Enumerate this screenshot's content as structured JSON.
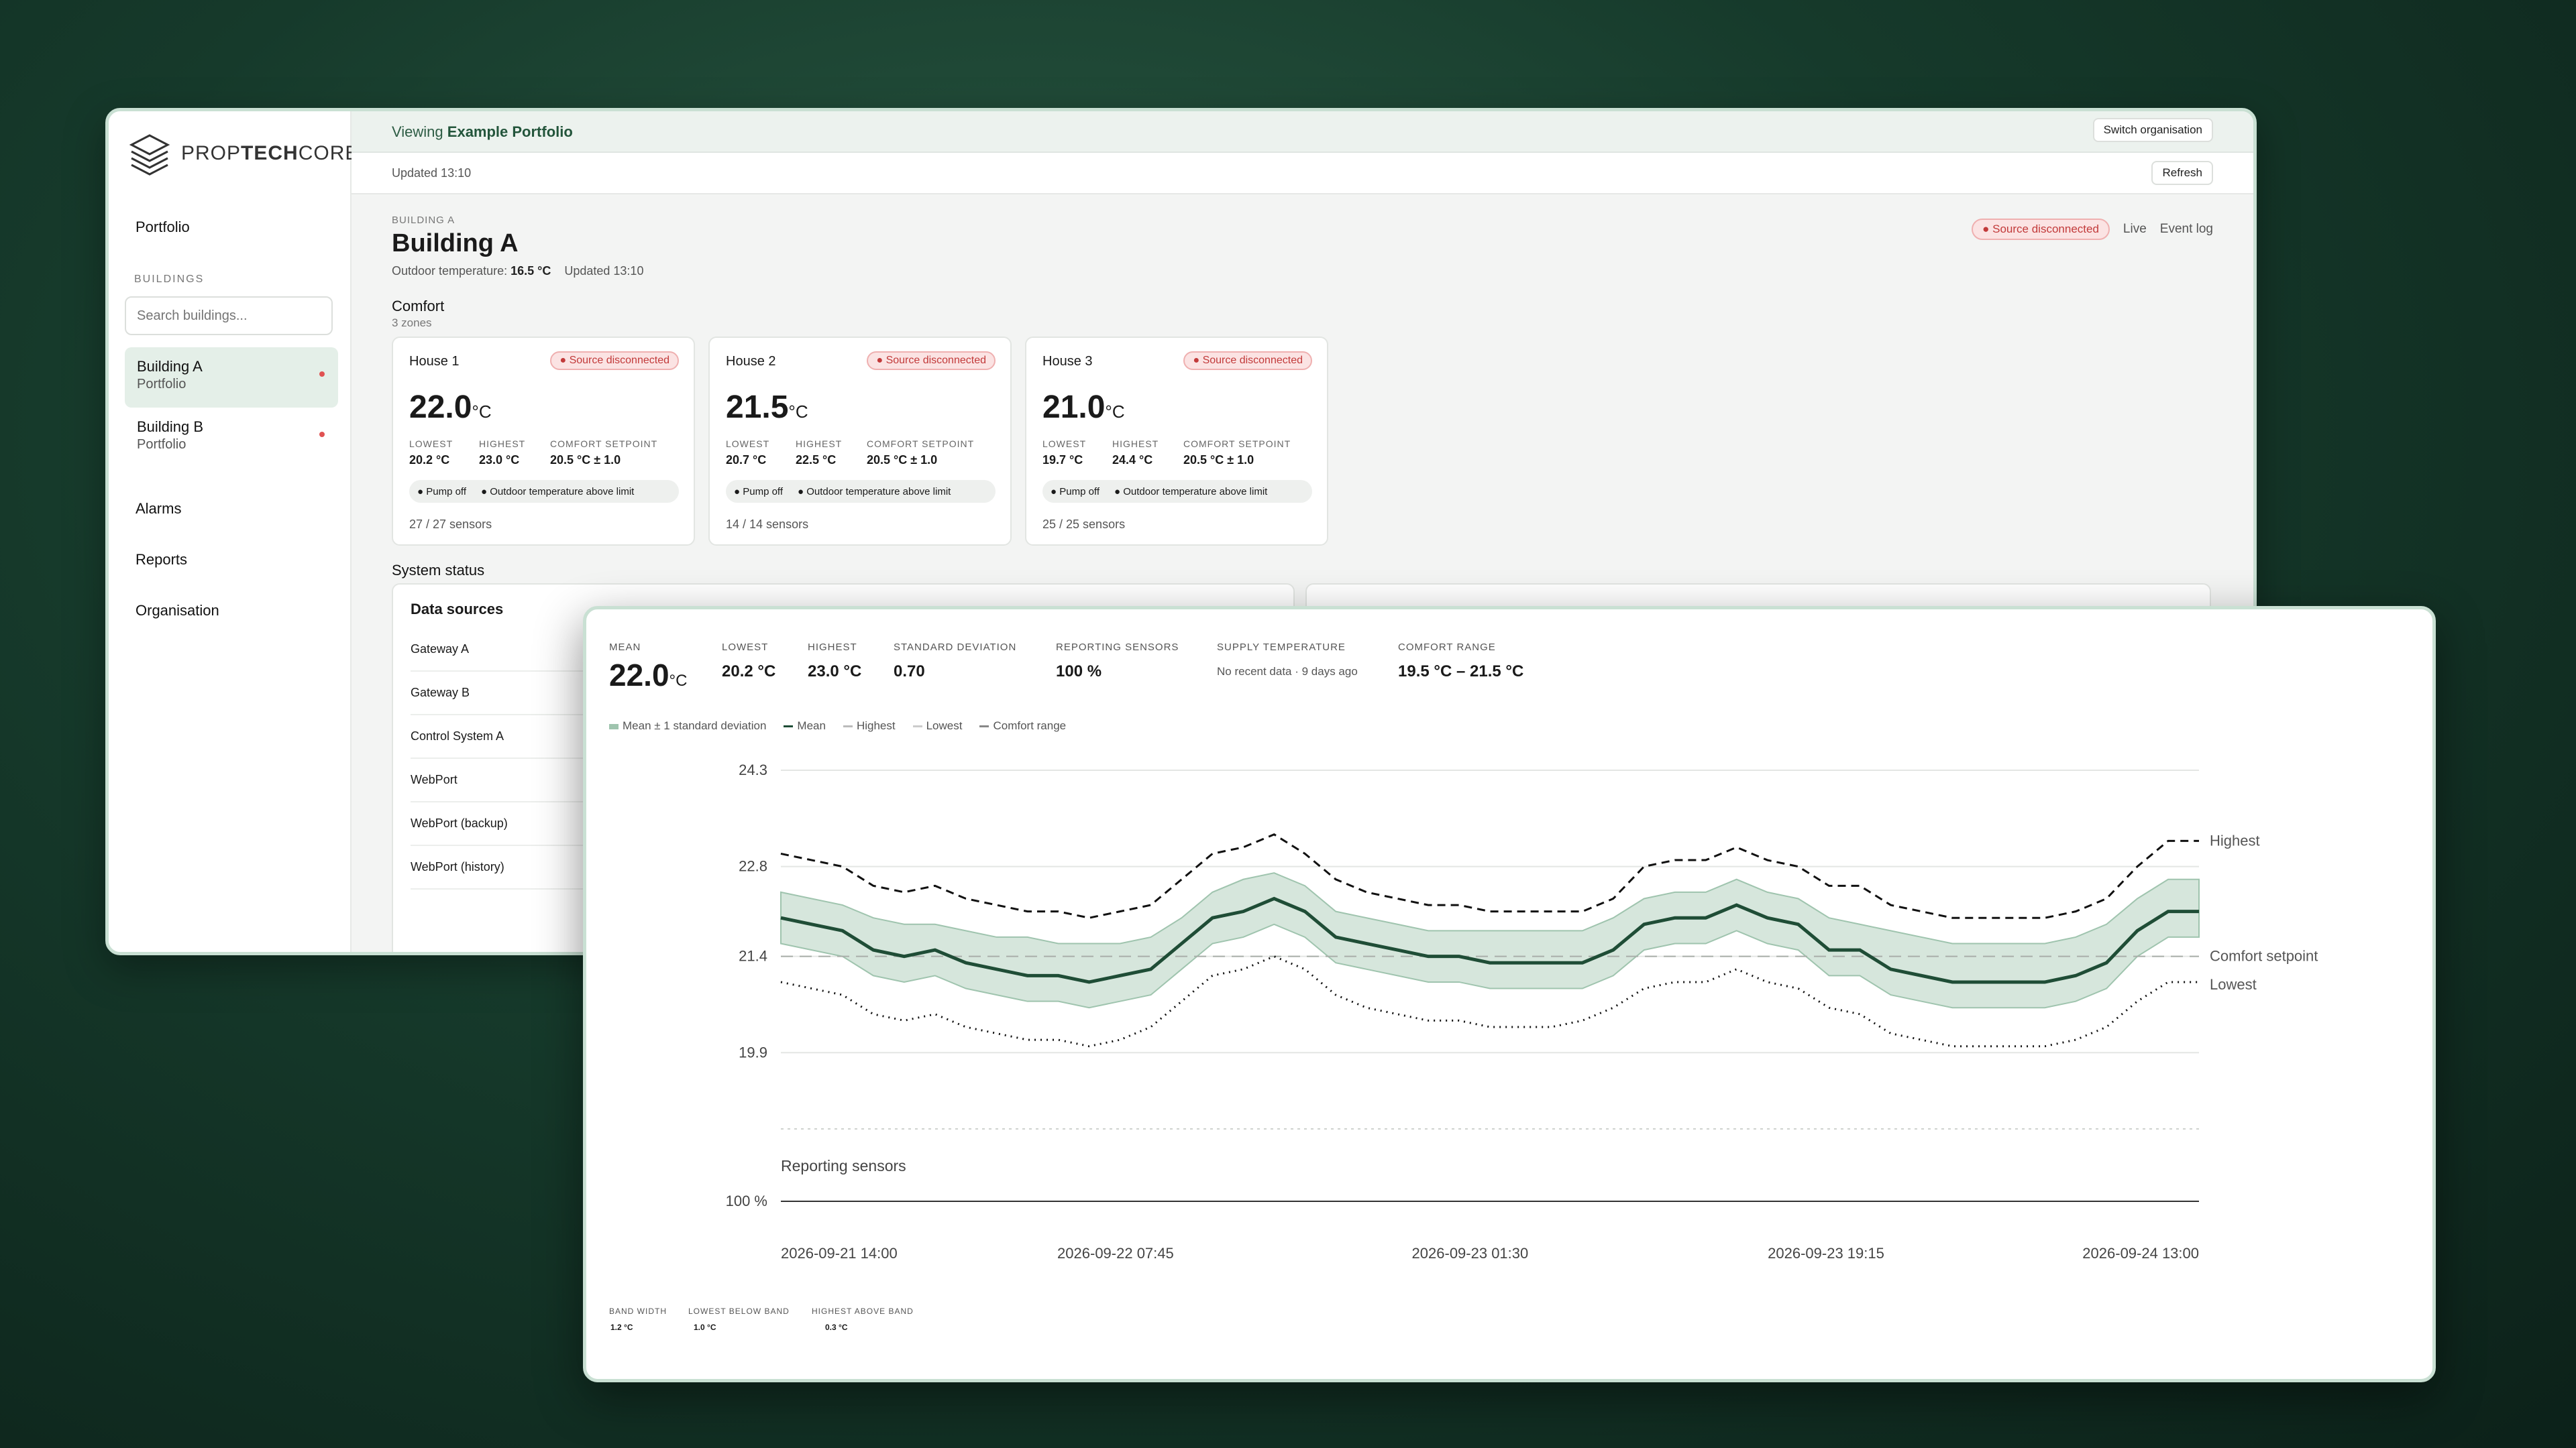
{
  "brand": {
    "name_light": "PROP",
    "name_bold": "TECH",
    "name_tail": "CORE"
  },
  "sidebar": {
    "portfolio": "Portfolio",
    "section": "BUILDINGS",
    "search_placeholder": "Search buildings...",
    "buildings": [
      {
        "name": "Building A",
        "sub": "Portfolio"
      },
      {
        "name": "Building B",
        "sub": "Portfolio"
      }
    ],
    "alarms": "Alarms",
    "reports": "Reports",
    "organisation": "Organisation"
  },
  "topbar": {
    "viewing": "Viewing",
    "org": "Example Portfolio",
    "switch": "Switch organisation"
  },
  "updbar": {
    "updated": "Updated 13:10",
    "refresh": "Refresh"
  },
  "building": {
    "crumb": "BUILDING A",
    "title": "Building A",
    "outdoor_label": "Outdoor temperature:",
    "outdoor_value": "16.5 °C",
    "updated": "Updated 13:10",
    "status": "● Source disconnected",
    "live": "Live",
    "event_log": "Event log"
  },
  "comfort": {
    "title": "Comfort",
    "zones": "3 zones",
    "lbl_lowest": "LOWEST",
    "lbl_highest": "HIGHEST",
    "lbl_setpoint": "COMFORT SETPOINT",
    "houses": [
      {
        "name": "House 1",
        "status": "● Source disconnected",
        "temp": "22.0",
        "unit": "°C",
        "lowest": "20.2 °C",
        "highest": "23.0 °C",
        "setpoint": "20.5 °C ± 1.0",
        "chip1": "● Pump off",
        "chip2": "● Outdoor temperature above limit",
        "sensors": "27 / 27 sensors"
      },
      {
        "name": "House 2",
        "status": "● Source disconnected",
        "temp": "21.5",
        "unit": "°C",
        "lowest": "20.7 °C",
        "highest": "22.5 °C",
        "setpoint": "20.5 °C ± 1.0",
        "chip1": "● Pump off",
        "chip2": "● Outdoor temperature above limit",
        "sensors": "14 / 14 sensors"
      },
      {
        "name": "House 3",
        "status": "● Source disconnected",
        "temp": "21.0",
        "unit": "°C",
        "lowest": "19.7 °C",
        "highest": "24.4 °C",
        "setpoint": "20.5 °C ± 1.0",
        "chip1": "● Pump off",
        "chip2": "● Outdoor temperature above limit",
        "sensors": "25 / 25 sensors"
      }
    ]
  },
  "system": {
    "title": "System status",
    "data_sources": "Data sources",
    "sources": [
      "Gateway A",
      "Gateway B",
      "Control System A",
      "WebPort",
      "WebPort (backup)",
      "WebPort (history)"
    ]
  },
  "detail": {
    "stats": {
      "mean_k": "MEAN",
      "mean_v": "22.0",
      "mean_unit": "°C",
      "lowest_k": "LOWEST",
      "lowest_v": "20.2 °C",
      "highest_k": "HIGHEST",
      "highest_v": "23.0 °C",
      "std_k": "STANDARD DEVIATION",
      "std_v": "0.70",
      "rep_k": "REPORTING SENSORS",
      "rep_v": "100 %",
      "supply_k": "SUPPLY TEMPERATURE",
      "supply_v": "No recent data · 9 days ago",
      "range_k": "COMFORT RANGE",
      "range_v": "19.5 °C – 21.5 °C"
    },
    "legend": {
      "band": "Mean ± 1 standard deviation",
      "mean": "Mean",
      "highest": "Highest",
      "lowest": "Lowest",
      "comfort": "Comfort range"
    },
    "footer": {
      "bw_k": "BAND WIDTH",
      "bw_v": "1.2 °C",
      "lb_k": "LOWEST BELOW BAND",
      "lb_v": "1.0 °C",
      "ha_k": "HIGHEST ABOVE BAND",
      "ha_v": "0.3 °C"
    }
  },
  "colors": {
    "accent": "#23553b",
    "band": "#d6e6dc",
    "danger": "#c23a3a"
  },
  "chart_data": {
    "type": "line",
    "x_ticks": [
      "2026-09-21 14:00",
      "2026-09-22 07:45",
      "2026-09-23 01:30",
      "2026-09-23 19:15",
      "2026-09-24 13:00"
    ],
    "y_ticks": [
      24.3,
      22.8,
      21.4,
      19.9
    ],
    "ylim": [
      19.5,
      24.3
    ],
    "series_labels": {
      "highest": "Highest",
      "setpoint": "Comfort setpoint",
      "lowest": "Lowest"
    },
    "comfort_setpoint": 21.4,
    "highest": [
      23.0,
      22.9,
      22.8,
      22.5,
      22.4,
      22.5,
      22.3,
      22.2,
      22.1,
      22.1,
      22.0,
      22.1,
      22.2,
      22.6,
      23.0,
      23.1,
      23.3,
      23.0,
      22.6,
      22.4,
      22.3,
      22.2,
      22.2,
      22.1,
      22.1,
      22.1,
      22.1,
      22.3,
      22.8,
      22.9,
      22.9,
      23.1,
      22.9,
      22.8,
      22.5,
      22.5,
      22.2,
      22.1,
      22.0,
      22.0,
      22.0,
      22.0,
      22.1,
      22.3,
      22.8,
      23.2,
      23.2
    ],
    "mean_plus": [
      22.4,
      22.3,
      22.2,
      22.0,
      21.9,
      21.9,
      21.8,
      21.7,
      21.7,
      21.6,
      21.6,
      21.6,
      21.7,
      22.0,
      22.4,
      22.6,
      22.7,
      22.5,
      22.1,
      22.0,
      21.9,
      21.8,
      21.8,
      21.8,
      21.8,
      21.8,
      21.8,
      22.0,
      22.3,
      22.4,
      22.4,
      22.6,
      22.4,
      22.3,
      22.0,
      21.9,
      21.8,
      21.7,
      21.6,
      21.6,
      21.6,
      21.6,
      21.7,
      21.9,
      22.3,
      22.6,
      22.6
    ],
    "mean": [
      22.0,
      21.9,
      21.8,
      21.5,
      21.4,
      21.5,
      21.3,
      21.2,
      21.1,
      21.1,
      21.0,
      21.1,
      21.2,
      21.6,
      22.0,
      22.1,
      22.3,
      22.1,
      21.7,
      21.6,
      21.5,
      21.4,
      21.4,
      21.3,
      21.3,
      21.3,
      21.3,
      21.5,
      21.9,
      22.0,
      22.0,
      22.2,
      22.0,
      21.9,
      21.5,
      21.5,
      21.2,
      21.1,
      21.0,
      21.0,
      21.0,
      21.0,
      21.1,
      21.3,
      21.8,
      22.1,
      22.1
    ],
    "mean_minus": [
      21.6,
      21.5,
      21.4,
      21.1,
      21.0,
      21.1,
      20.9,
      20.8,
      20.7,
      20.7,
      20.6,
      20.7,
      20.8,
      21.2,
      21.6,
      21.7,
      21.9,
      21.7,
      21.3,
      21.2,
      21.1,
      21.0,
      21.0,
      20.9,
      20.9,
      20.9,
      20.9,
      21.1,
      21.5,
      21.6,
      21.6,
      21.8,
      21.6,
      21.5,
      21.1,
      21.1,
      20.8,
      20.7,
      20.6,
      20.6,
      20.6,
      20.6,
      20.7,
      20.9,
      21.4,
      21.7,
      21.7
    ],
    "lowest": [
      21.0,
      20.9,
      20.8,
      20.5,
      20.4,
      20.5,
      20.3,
      20.2,
      20.1,
      20.1,
      20.0,
      20.1,
      20.3,
      20.7,
      21.1,
      21.2,
      21.4,
      21.2,
      20.8,
      20.6,
      20.5,
      20.4,
      20.4,
      20.3,
      20.3,
      20.3,
      20.4,
      20.6,
      20.9,
      21.0,
      21.0,
      21.2,
      21.0,
      20.9,
      20.6,
      20.5,
      20.2,
      20.1,
      20.0,
      20.0,
      20.0,
      20.0,
      20.1,
      20.3,
      20.7,
      21.0,
      21.0
    ],
    "reporting_sensors_label": "Reporting sensors",
    "reporting_sensors_value": "100 %"
  }
}
